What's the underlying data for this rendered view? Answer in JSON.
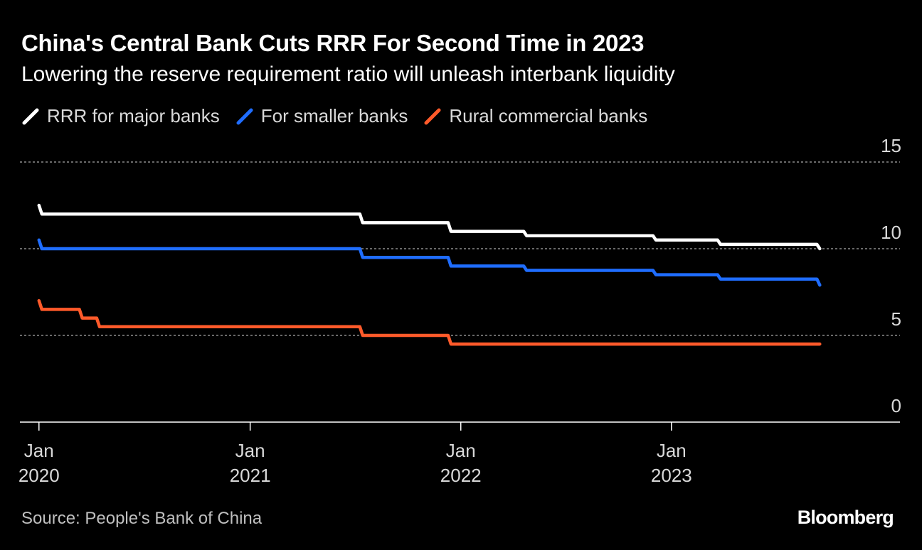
{
  "header": {
    "title": "China's Central Bank Cuts RRR For Second Time in 2023",
    "subtitle": "Lowering the reserve requirement ratio will unleash interbank liquidity"
  },
  "footer": {
    "source": "Source: People's Bank of China",
    "brand": "Bloomberg"
  },
  "colors": {
    "background": "#000000",
    "major": "#ffffff",
    "smaller": "#1f6dff",
    "rural": "#ff5a2a",
    "grid": "#8c8c8c",
    "axis_text": "#d9d9d9"
  },
  "chart_data": {
    "type": "line",
    "step": true,
    "grid": "horizontal-dashed",
    "legend_position": "top-left",
    "y_axis_side": "right",
    "ylim": [
      0,
      15
    ],
    "yticks": [
      0,
      5,
      10,
      15
    ],
    "xlim": [
      "2019-11-29",
      "2024-02-01"
    ],
    "xticks": [
      {
        "date": "2020-01-01",
        "line1": "Jan",
        "line2": "2020"
      },
      {
        "date": "2021-01-01",
        "line1": "Jan",
        "line2": "2021"
      },
      {
        "date": "2022-01-01",
        "line1": "Jan",
        "line2": "2022"
      },
      {
        "date": "2023-01-01",
        "line1": "Jan",
        "line2": "2023"
      }
    ],
    "series": [
      {
        "name": "RRR for major banks",
        "color_key": "major",
        "points": [
          [
            "2020-01-01",
            12.5
          ],
          [
            "2020-01-06",
            12.0
          ],
          [
            "2021-07-15",
            11.5
          ],
          [
            "2021-12-15",
            11.0
          ],
          [
            "2022-04-25",
            10.75
          ],
          [
            "2022-12-05",
            10.5
          ],
          [
            "2023-03-27",
            10.25
          ],
          [
            "2023-09-15",
            10.0
          ]
        ]
      },
      {
        "name": "For smaller banks",
        "color_key": "smaller",
        "points": [
          [
            "2020-01-01",
            10.5
          ],
          [
            "2020-01-06",
            10.0
          ],
          [
            "2021-07-15",
            9.5
          ],
          [
            "2021-12-15",
            9.0
          ],
          [
            "2022-04-25",
            8.75
          ],
          [
            "2022-12-05",
            8.5
          ],
          [
            "2023-03-27",
            8.25
          ],
          [
            "2023-09-15",
            7.9
          ]
        ]
      },
      {
        "name": "Rural commercial banks",
        "color_key": "rural",
        "points": [
          [
            "2020-01-01",
            7.0
          ],
          [
            "2020-01-06",
            6.5
          ],
          [
            "2020-03-16",
            6.0
          ],
          [
            "2020-04-15",
            5.5
          ],
          [
            "2021-07-15",
            5.0
          ],
          [
            "2021-12-15",
            4.5
          ],
          [
            "2023-09-15",
            4.5
          ]
        ]
      }
    ]
  }
}
